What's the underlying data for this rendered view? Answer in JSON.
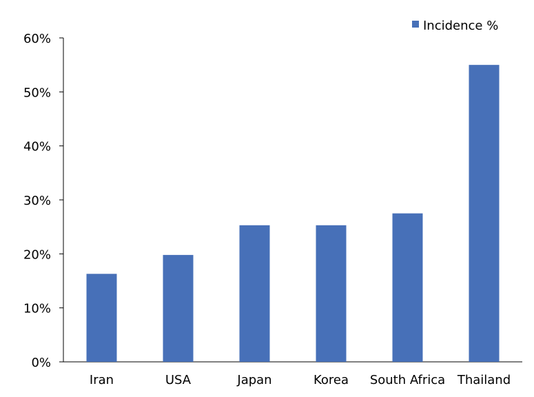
{
  "chart_data": {
    "type": "bar",
    "categories": [
      "Iran",
      "USA",
      "Japan",
      "Korea",
      "South Africa",
      "Thailand"
    ],
    "series": [
      {
        "name": "Incidence %",
        "values": [
          16.3,
          19.8,
          25.3,
          25.3,
          27.5,
          55.0
        ],
        "color": "#4770B8"
      }
    ],
    "ylim": [
      0,
      60
    ],
    "yticks": [
      0,
      10,
      20,
      30,
      40,
      50,
      60
    ],
    "ytick_labels": [
      "0%",
      "10%",
      "20%",
      "30%",
      "40%",
      "50%",
      "60%"
    ],
    "title": "",
    "xlabel": "",
    "ylabel": "",
    "grid": false,
    "legend_position": "top-right"
  }
}
